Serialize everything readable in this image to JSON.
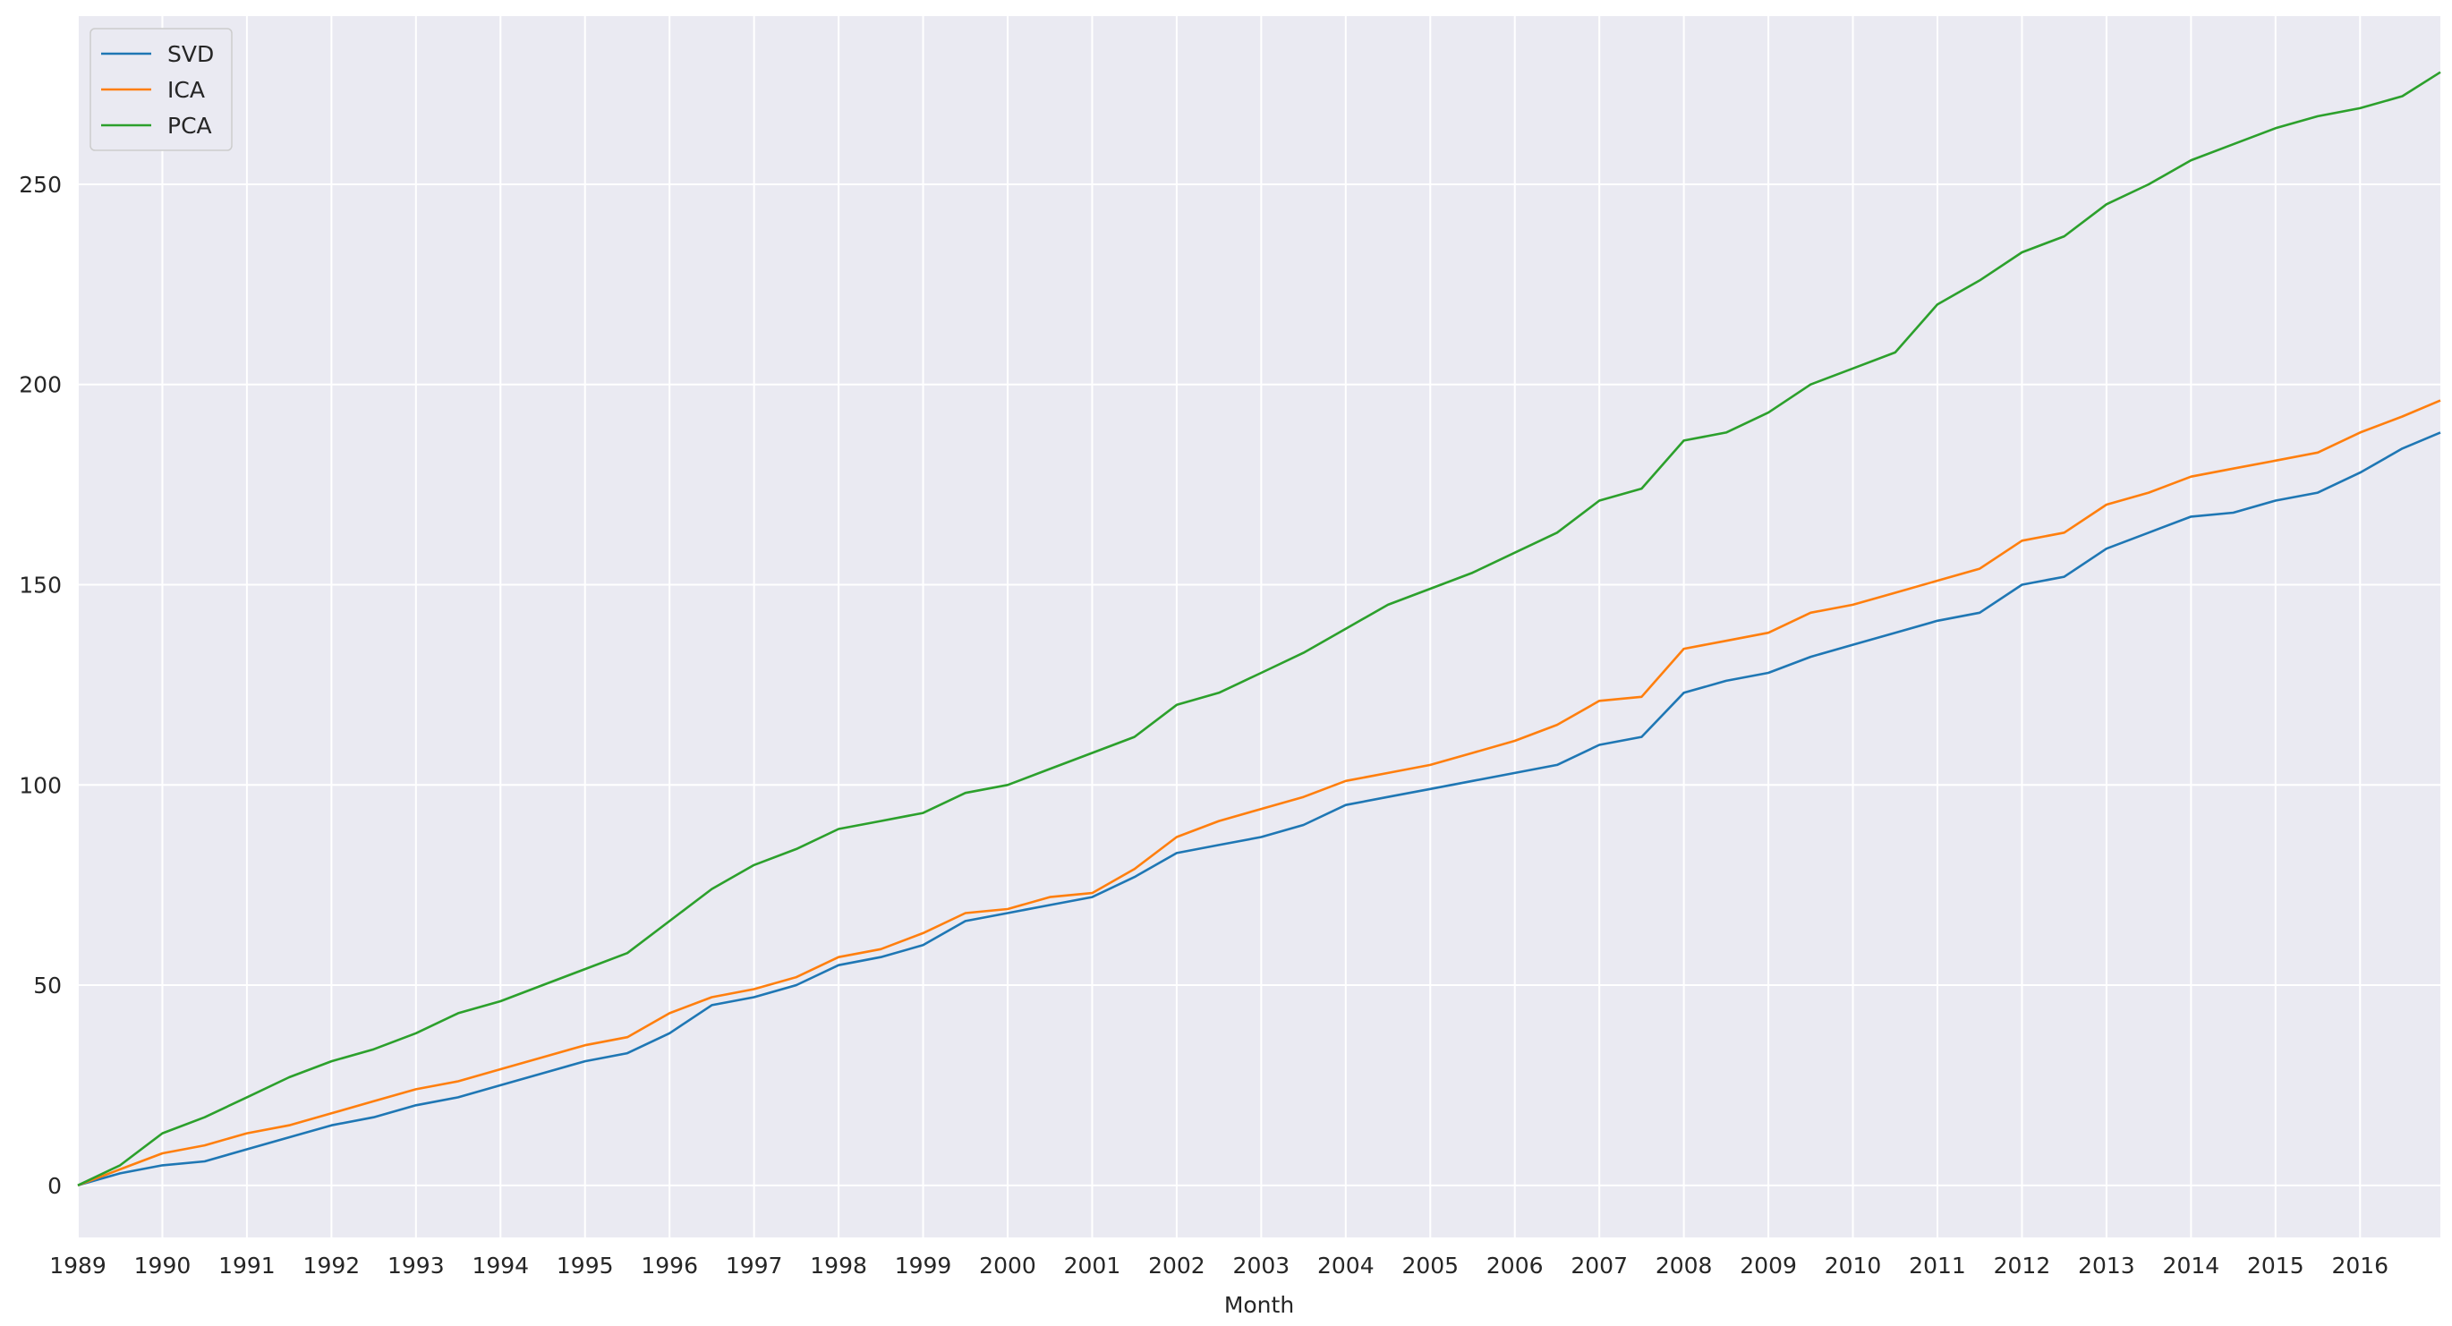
{
  "chart_data": {
    "type": "line",
    "title": "",
    "xlabel": "Month",
    "ylabel": "",
    "xlim": [
      1989.0,
      2016.95
    ],
    "ylim": [
      -13,
      292
    ],
    "grid": true,
    "legend_position": "top-left",
    "x_ticks": [
      1989,
      1990,
      1991,
      1992,
      1993,
      1994,
      1995,
      1996,
      1997,
      1998,
      1999,
      2000,
      2001,
      2002,
      2003,
      2004,
      2005,
      2006,
      2007,
      2008,
      2009,
      2010,
      2011,
      2012,
      2013,
      2014,
      2015,
      2016
    ],
    "x_tick_labels": [
      "1989",
      "1990",
      "1991",
      "1992",
      "1993",
      "1994",
      "1995",
      "1996",
      "1997",
      "1998",
      "1999",
      "2000",
      "2001",
      "2002",
      "2003",
      "2004",
      "2005",
      "2006",
      "2007",
      "2008",
      "2009",
      "2010",
      "2011",
      "2012",
      "2013",
      "2014",
      "2015",
      "2016"
    ],
    "y_ticks": [
      0,
      50,
      100,
      150,
      200,
      250
    ],
    "y_tick_labels": [
      "0",
      "50",
      "100",
      "150",
      "200",
      "250"
    ],
    "colors": {
      "background": "#eaeaf2",
      "grid": "#ffffff"
    },
    "x": [
      1989.0,
      1989.5,
      1990.0,
      1990.5,
      1991.0,
      1991.5,
      1992.0,
      1992.5,
      1993.0,
      1993.5,
      1994.0,
      1994.5,
      1995.0,
      1995.5,
      1996.0,
      1996.5,
      1997.0,
      1997.5,
      1998.0,
      1998.5,
      1999.0,
      1999.5,
      2000.0,
      2000.5,
      2001.0,
      2001.5,
      2002.0,
      2002.5,
      2003.0,
      2003.5,
      2004.0,
      2004.5,
      2005.0,
      2005.5,
      2006.0,
      2006.5,
      2007.0,
      2007.5,
      2008.0,
      2008.5,
      2009.0,
      2009.5,
      2010.0,
      2010.5,
      2011.0,
      2011.5,
      2012.0,
      2012.5,
      2013.0,
      2013.5,
      2014.0,
      2014.5,
      2015.0,
      2015.5,
      2016.0,
      2016.5,
      2016.95
    ],
    "series": [
      {
        "name": "SVD",
        "color": "#1f77b4",
        "values": [
          0,
          3,
          5,
          6,
          9,
          12,
          15,
          17,
          20,
          22,
          25,
          28,
          31,
          33,
          38,
          45,
          47,
          50,
          55,
          57,
          60,
          66,
          68,
          70,
          72,
          77,
          83,
          85,
          87,
          90,
          95,
          97,
          99,
          101,
          103,
          105,
          110,
          112,
          123,
          126,
          128,
          132,
          135,
          138,
          141,
          143,
          150,
          152,
          159,
          163,
          167,
          168,
          171,
          173,
          178,
          184,
          188
        ]
      },
      {
        "name": "ICA",
        "color": "#ff7f0e",
        "values": [
          0,
          4,
          8,
          10,
          13,
          15,
          18,
          21,
          24,
          26,
          29,
          32,
          35,
          37,
          43,
          47,
          49,
          52,
          57,
          59,
          63,
          68,
          69,
          72,
          73,
          79,
          87,
          91,
          94,
          97,
          101,
          103,
          105,
          108,
          111,
          115,
          121,
          122,
          134,
          136,
          138,
          143,
          145,
          148,
          151,
          154,
          161,
          163,
          170,
          173,
          177,
          179,
          181,
          183,
          188,
          192,
          196
        ]
      },
      {
        "name": "PCA",
        "color": "#2ca02c",
        "values": [
          0,
          5,
          13,
          17,
          22,
          27,
          31,
          34,
          38,
          43,
          46,
          50,
          54,
          58,
          66,
          74,
          80,
          84,
          89,
          91,
          93,
          98,
          100,
          104,
          108,
          112,
          120,
          123,
          128,
          133,
          139,
          145,
          149,
          153,
          158,
          163,
          171,
          174,
          186,
          188,
          193,
          200,
          204,
          208,
          220,
          226,
          233,
          237,
          245,
          250,
          256,
          260,
          264,
          267,
          269,
          272,
          278
        ]
      }
    ]
  }
}
